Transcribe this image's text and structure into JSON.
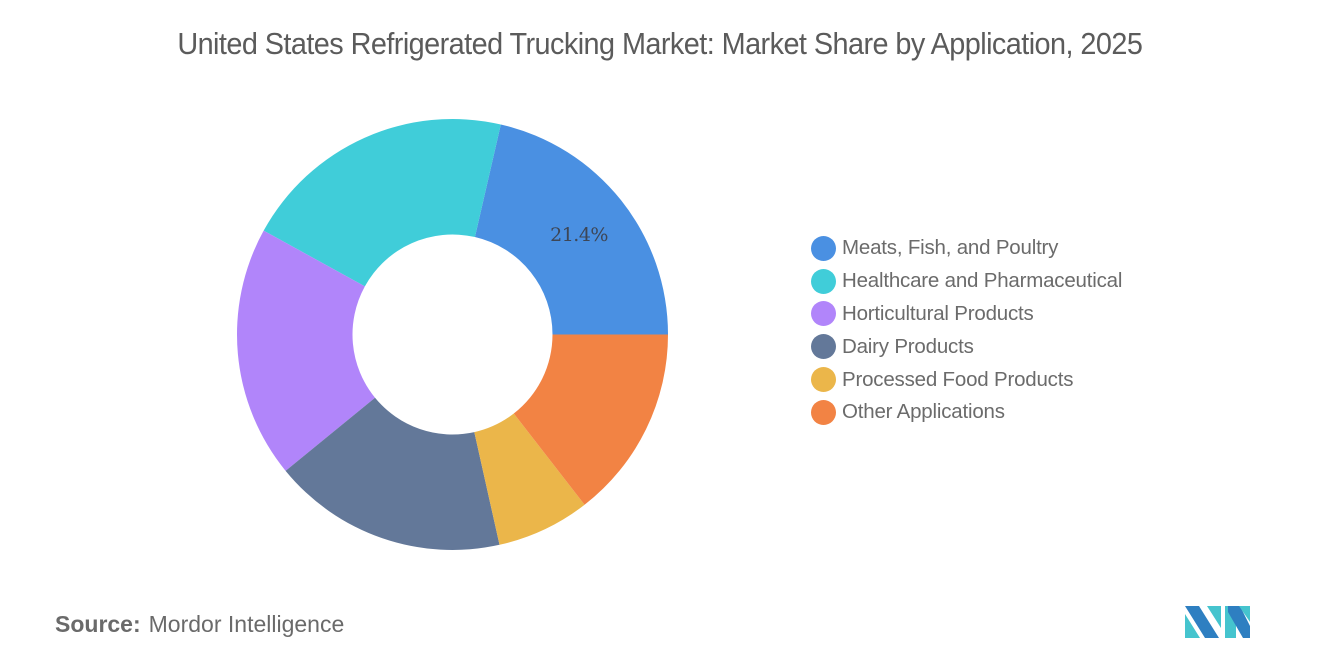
{
  "title": "United States Refrigerated Trucking Market: Market Share by Application, 2025",
  "legend": [
    {
      "label": "Meats, Fish, and Poultry",
      "color": "#4A90E2"
    },
    {
      "label": "Healthcare and Pharmaceutical",
      "color": "#40CDD9"
    },
    {
      "label": "Horticultural Products",
      "color": "#B185FA"
    },
    {
      "label": "Dairy Products",
      "color": "#637899"
    },
    {
      "label": "Processed Food Products",
      "color": "#EBB64A"
    },
    {
      "label": "Other Applications",
      "color": "#F28344"
    }
  ],
  "footer": {
    "source_key": "Source:",
    "source_value": "Mordor Intelligence"
  },
  "logo": {
    "icon": "mordor-intelligence-logo",
    "colors": [
      "#2E7FC1",
      "#45C4CE"
    ]
  },
  "chart_data": {
    "type": "pie",
    "variant": "donut",
    "title": "United States Refrigerated Trucking Market: Market Share by Application, 2025",
    "categories": [
      "Meats, Fish, and Poultry",
      "Healthcare and Pharmaceutical",
      "Horticultural Products",
      "Dairy Products",
      "Processed Food Products",
      "Other Applications"
    ],
    "values": [
      21.4,
      20.6,
      18.9,
      17.6,
      7.0,
      14.5
    ],
    "colors": [
      "#4A90E2",
      "#40CDD9",
      "#B185FA",
      "#637899",
      "#EBB64A",
      "#F28344"
    ],
    "data_labels": [
      {
        "category": "Meats, Fish, and Poultry",
        "text": "21.4%"
      }
    ],
    "legend_position": "right",
    "start_angle_deg": 90,
    "direction": "counterclockwise-from-3-oclock",
    "center": [
      452.5,
      334.5
    ],
    "outer_radius": 215.5,
    "inner_radius": 100
  }
}
